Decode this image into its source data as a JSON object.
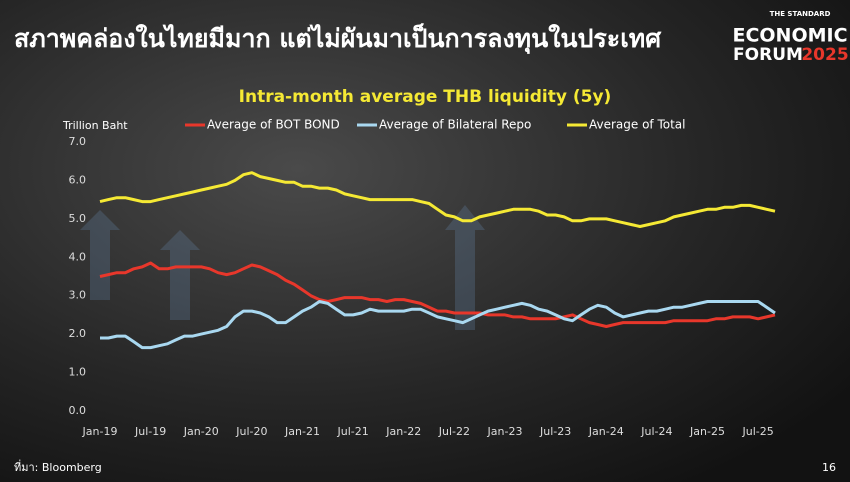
{
  "header": {
    "title": "สภาพคล่องในไทยมีมาก แต่ไม่ผันมาเป็นการลงทุนในประเทศ",
    "logo": {
      "top": "THE STANDARD",
      "line1": "ECONOMIC",
      "line2": "FORUM",
      "year": "2025"
    }
  },
  "chart_data": {
    "type": "line",
    "title": "Intra-month average THB liquidity (5y)",
    "y_label": "Trillion Baht",
    "categories": [
      "Jan-19",
      null,
      null,
      null,
      null,
      null,
      "Jul-19",
      null,
      null,
      null,
      null,
      null,
      "Jan-20",
      null,
      null,
      null,
      null,
      null,
      "Jul-20",
      null,
      null,
      null,
      null,
      null,
      "Jan-21",
      null,
      null,
      null,
      null,
      null,
      "Jul-21",
      null,
      null,
      null,
      null,
      null,
      "Jan-22",
      null,
      null,
      null,
      null,
      null,
      "Jul-22",
      null,
      null,
      null,
      null,
      null,
      "Jan-23",
      null,
      null,
      null,
      null,
      null,
      "Jul-23",
      null,
      null,
      null,
      null,
      null,
      "Jan-24",
      null,
      null,
      null,
      null,
      null,
      "Jul-24",
      null,
      null,
      null,
      null,
      null,
      "Jan-25",
      null,
      null,
      null,
      null,
      null,
      "Jul-25",
      null,
      null
    ],
    "series": [
      {
        "name": "Average of BOT BOND",
        "color": "#e8372b",
        "values": [
          3.5,
          3.55,
          3.6,
          3.6,
          3.7,
          3.75,
          3.85,
          3.7,
          3.7,
          3.75,
          3.75,
          3.75,
          3.75,
          3.7,
          3.6,
          3.55,
          3.6,
          3.7,
          3.8,
          3.75,
          3.65,
          3.55,
          3.4,
          3.3,
          3.15,
          3.0,
          2.9,
          2.85,
          2.9,
          2.95,
          2.95,
          2.95,
          2.9,
          2.9,
          2.85,
          2.9,
          2.9,
          2.85,
          2.8,
          2.7,
          2.6,
          2.6,
          2.55,
          2.55,
          2.55,
          2.55,
          2.5,
          2.5,
          2.5,
          2.45,
          2.45,
          2.4,
          2.4,
          2.4,
          2.4,
          2.45,
          2.5,
          2.4,
          2.3,
          2.25,
          2.2,
          2.25,
          2.3,
          2.3,
          2.3,
          2.3,
          2.3,
          2.3,
          2.35,
          2.35,
          2.35,
          2.35,
          2.35,
          2.4,
          2.4,
          2.45,
          2.45,
          2.45,
          2.4,
          2.45,
          2.5
        ]
      },
      {
        "name": "Average of Bilateral Repo",
        "color": "#a9d8f0",
        "values": [
          1.9,
          1.9,
          1.95,
          1.95,
          1.8,
          1.65,
          1.65,
          1.7,
          1.75,
          1.85,
          1.95,
          1.95,
          2.0,
          2.05,
          2.1,
          2.2,
          2.45,
          2.6,
          2.6,
          2.55,
          2.45,
          2.3,
          2.3,
          2.45,
          2.6,
          2.7,
          2.85,
          2.8,
          2.65,
          2.5,
          2.5,
          2.55,
          2.65,
          2.6,
          2.6,
          2.6,
          2.6,
          2.65,
          2.65,
          2.55,
          2.45,
          2.4,
          2.35,
          2.3,
          2.4,
          2.5,
          2.6,
          2.65,
          2.7,
          2.75,
          2.8,
          2.75,
          2.65,
          2.6,
          2.5,
          2.4,
          2.35,
          2.5,
          2.65,
          2.75,
          2.7,
          2.55,
          2.45,
          2.5,
          2.55,
          2.6,
          2.6,
          2.65,
          2.7,
          2.7,
          2.75,
          2.8,
          2.85,
          2.85,
          2.85,
          2.85,
          2.85,
          2.85,
          2.85,
          2.7,
          2.55
        ]
      },
      {
        "name": "Average of Total",
        "color": "#f5e934",
        "values": [
          5.45,
          5.5,
          5.55,
          5.55,
          5.5,
          5.45,
          5.45,
          5.5,
          5.55,
          5.6,
          5.65,
          5.7,
          5.75,
          5.8,
          5.85,
          5.9,
          6.0,
          6.15,
          6.2,
          6.1,
          6.05,
          6.0,
          5.95,
          5.95,
          5.85,
          5.85,
          5.8,
          5.8,
          5.75,
          5.65,
          5.6,
          5.55,
          5.5,
          5.5,
          5.5,
          5.5,
          5.5,
          5.5,
          5.45,
          5.4,
          5.25,
          5.1,
          5.05,
          4.95,
          4.95,
          5.05,
          5.1,
          5.15,
          5.2,
          5.25,
          5.25,
          5.25,
          5.2,
          5.1,
          5.1,
          5.05,
          4.95,
          4.95,
          5.0,
          5.0,
          5.0,
          4.95,
          4.9,
          4.85,
          4.8,
          4.85,
          4.9,
          4.95,
          5.05,
          5.1,
          5.15,
          5.2,
          5.25,
          5.25,
          5.3,
          5.3,
          5.35,
          5.35,
          5.3,
          5.25,
          5.2
        ]
      }
    ],
    "ylim": [
      0,
      7
    ],
    "yticks": [
      {
        "value": 0,
        "label": "0.0"
      },
      {
        "value": 1,
        "label": "1.0"
      },
      {
        "value": 2,
        "label": "2.0"
      },
      {
        "value": 3,
        "label": "3.0"
      },
      {
        "value": 4,
        "label": "4.0"
      },
      {
        "value": 5,
        "label": "5.0"
      },
      {
        "value": 6,
        "label": "6.0"
      },
      {
        "value": 7,
        "label": "7.0"
      }
    ],
    "grid": false,
    "legend": "top"
  },
  "footer": {
    "source": "ที่มา: Bloomberg",
    "page": "16"
  }
}
